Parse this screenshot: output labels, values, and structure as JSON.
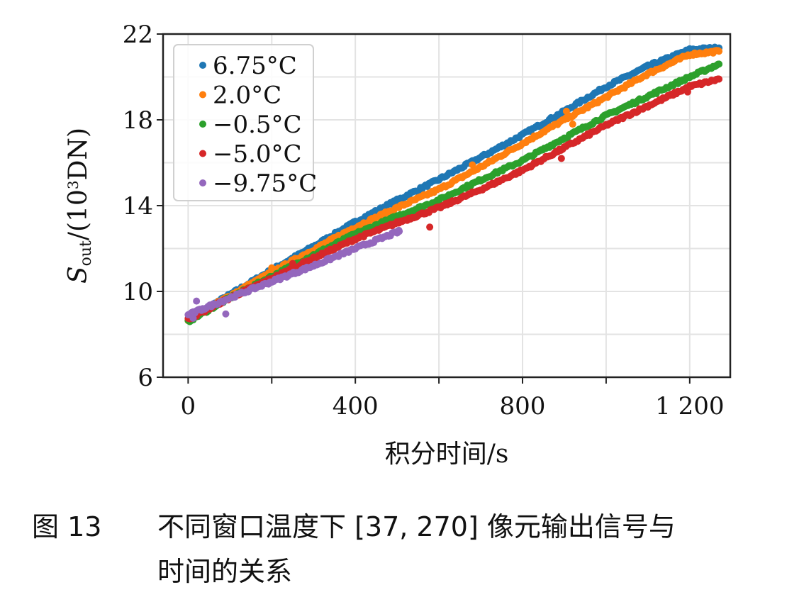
{
  "chart_data": {
    "type": "scatter",
    "title": "",
    "xlabel": "积分时间/s",
    "ylabel_main": "S",
    "ylabel_sub": "out",
    "ylabel_rest": "/(10",
    "ylabel_sup": "3",
    "ylabel_end": "DN)",
    "xlim": [
      -60,
      1297
    ],
    "ylim": [
      6,
      22
    ],
    "xticks": [
      0,
      400,
      800,
      1200
    ],
    "xtick_labels": [
      "0",
      "400",
      "800",
      "1 200"
    ],
    "xminor_ticks": [
      200,
      600,
      1000
    ],
    "yticks": [
      6,
      10,
      14,
      18,
      22
    ],
    "ytick_labels": [
      "6",
      "10",
      "14",
      "18",
      "22"
    ],
    "ygrid": [
      6,
      8,
      10,
      12,
      14,
      16,
      18,
      20,
      22
    ],
    "xgrid": [
      0,
      200,
      400,
      600,
      800,
      1000,
      1200
    ],
    "grid": true,
    "legend_placement": "top-left",
    "series": [
      {
        "name": "6.75°C",
        "color": "#1f77b4",
        "points": [
          [
            0,
            8.7
          ],
          [
            100,
            9.85
          ],
          [
            200,
            11.0
          ],
          [
            300,
            12.1
          ],
          [
            400,
            13.24
          ],
          [
            500,
            14.25
          ],
          [
            600,
            15.22
          ],
          [
            700,
            16.25
          ],
          [
            800,
            17.3
          ],
          [
            900,
            18.4
          ],
          [
            1000,
            19.55
          ],
          [
            1100,
            20.5
          ],
          [
            1200,
            21.27
          ],
          [
            1270,
            21.35
          ]
        ],
        "outliers": []
      },
      {
        "name": "2.0°C",
        "color": "#ff7f0e",
        "points": [
          [
            0,
            8.65
          ],
          [
            100,
            9.8
          ],
          [
            200,
            10.9
          ],
          [
            300,
            11.95
          ],
          [
            400,
            13.0
          ],
          [
            500,
            13.9
          ],
          [
            600,
            14.76
          ],
          [
            700,
            15.8
          ],
          [
            800,
            16.9
          ],
          [
            900,
            18.0
          ],
          [
            1000,
            19.06
          ],
          [
            1100,
            20.15
          ],
          [
            1200,
            21.05
          ],
          [
            1270,
            21.2
          ]
        ],
        "outliers": [
          [
            200,
            11.1
          ],
          [
            905,
            18.4
          ],
          [
            920,
            17.8
          ],
          [
            680,
            15.9
          ]
        ]
      },
      {
        "name": "−0.5°C",
        "color": "#2ca02c",
        "points": [
          [
            0,
            8.6
          ],
          [
            100,
            9.7
          ],
          [
            200,
            10.7
          ],
          [
            300,
            11.7
          ],
          [
            400,
            12.68
          ],
          [
            500,
            13.5
          ],
          [
            600,
            14.26
          ],
          [
            700,
            15.2
          ],
          [
            800,
            16.1
          ],
          [
            900,
            17.15
          ],
          [
            1000,
            18.2
          ],
          [
            1100,
            19.1
          ],
          [
            1200,
            20.0
          ],
          [
            1270,
            20.6
          ]
        ],
        "outliers": []
      },
      {
        "name": "−5.0°C",
        "color": "#d62728",
        "points": [
          [
            0,
            8.7
          ],
          [
            100,
            9.7
          ],
          [
            200,
            10.6
          ],
          [
            300,
            11.55
          ],
          [
            400,
            12.45
          ],
          [
            500,
            13.2
          ],
          [
            600,
            13.9
          ],
          [
            700,
            14.75
          ],
          [
            800,
            15.65
          ],
          [
            900,
            16.7
          ],
          [
            1000,
            17.75
          ],
          [
            1100,
            18.65
          ],
          [
            1200,
            19.55
          ],
          [
            1270,
            19.9
          ]
        ],
        "outliers": [
          [
            250,
            11.3
          ],
          [
            578,
            13.0
          ],
          [
            893,
            16.2
          ],
          [
            1195,
            19.3
          ]
        ]
      },
      {
        "name": "−9.75°C",
        "color": "#9467bd",
        "points": [
          [
            0,
            8.9
          ],
          [
            100,
            9.7
          ],
          [
            200,
            10.46
          ],
          [
            300,
            11.2
          ],
          [
            400,
            12.0
          ],
          [
            505,
            12.8
          ]
        ],
        "outliers": [
          [
            20,
            9.55
          ],
          [
            90,
            8.95
          ],
          [
            12,
            8.75
          ],
          [
            35,
            9.2
          ]
        ]
      }
    ]
  },
  "caption": {
    "figure_number": "图 13",
    "line1": "不同窗口温度下 [37, 270] 像元输出信号与",
    "line2": "时间的关系"
  }
}
